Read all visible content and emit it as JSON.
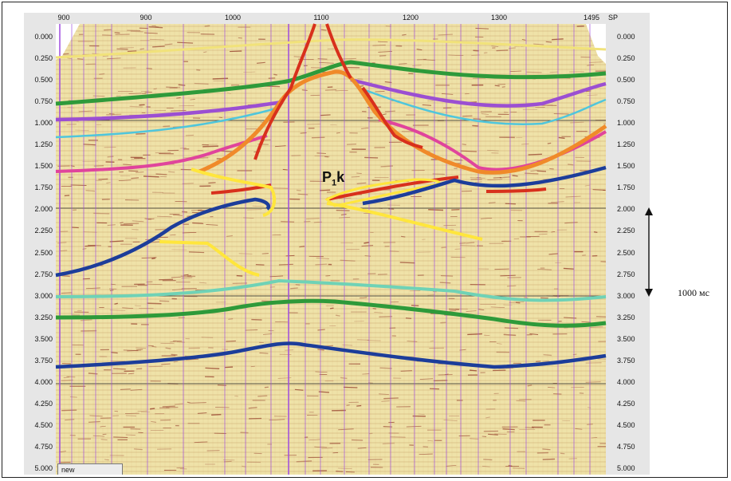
{
  "figure": {
    "shotpoint_axis": {
      "label": "SP",
      "ticks": [
        "900",
        "900",
        "1000",
        "1100",
        "1200",
        "1300",
        "1495"
      ]
    },
    "time_axis": {
      "ticks": [
        "0.000",
        "0.250",
        "0.500",
        "0.750",
        "1.000",
        "1.250",
        "1.500",
        "1.750",
        "2.000",
        "2.250",
        "2.500",
        "2.750",
        "3.000",
        "3.250",
        "3.500",
        "3.750",
        "4.000",
        "4.250",
        "4.500",
        "4.750",
        "5.000"
      ]
    },
    "horizon_label": {
      "main": "P",
      "sub": "1",
      "suffix": "k"
    },
    "scale_bar": {
      "text": "1000 мс"
    },
    "corner_tab": "new"
  },
  "colors": {
    "background_dominant": "#efe2a8",
    "trace_red": "#8a2a1c",
    "trace_line": "#a04ce0",
    "horizon_yellow_top": "#f1e27a",
    "horizon_green": "#2e9a3a",
    "horizon_purple": "#9b4fd2",
    "horizon_cyan": "#4fc6dc",
    "horizon_magenta": "#e0449c",
    "horizon_orange": "#f08a2a",
    "fault_red": "#d8301c",
    "horizon_navy": "#1c3d9a",
    "horizon_teal": "#6fd2b6",
    "horizon_yellow": "#ffe63c"
  }
}
